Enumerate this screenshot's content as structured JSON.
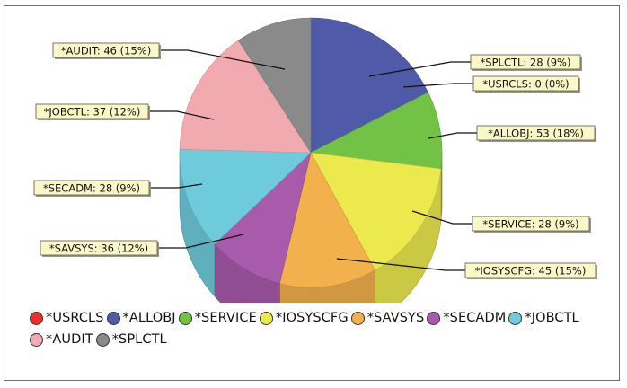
{
  "chart_data": {
    "type": "pie",
    "style": "3d",
    "legend_position": "bottom",
    "slices": [
      {
        "name": "*USRCLS",
        "label": "*USRCLS: 0 (0%)",
        "value": 0,
        "percent": 0,
        "color": "#e8302b"
      },
      {
        "name": "*ALLOBJ",
        "label": "*ALLOBJ: 53 (18%)",
        "value": 53,
        "percent": 18,
        "color": "#4f5aa8"
      },
      {
        "name": "*SERVICE",
        "label": "*SERVICE: 28 (9%)",
        "value": 28,
        "percent": 9,
        "color": "#72c246"
      },
      {
        "name": "*IOSYSCFG",
        "label": "*IOSYSCFG: 45 (15%)",
        "value": 45,
        "percent": 15,
        "color": "#ece94e"
      },
      {
        "name": "*SAVSYS",
        "label": "*SAVSYS: 36 (12%)",
        "value": 36,
        "percent": 12,
        "color": "#f2b14c"
      },
      {
        "name": "*SECADM",
        "label": "*SECADM: 28 (9%)",
        "value": 28,
        "percent": 9,
        "color": "#a85aab"
      },
      {
        "name": "*JOBCTL",
        "label": "*JOBCTL: 37 (12%)",
        "value": 37,
        "percent": 12,
        "color": "#6ecbdb"
      },
      {
        "name": "*AUDIT",
        "label": "*AUDIT: 46 (15%)",
        "value": 46,
        "percent": 15,
        "color": "#f2aab1"
      },
      {
        "name": "*SPLCTL",
        "label": "*SPLCTL: 28 (9%)",
        "value": 28,
        "percent": 9,
        "color": "#8a8a8a"
      }
    ]
  }
}
